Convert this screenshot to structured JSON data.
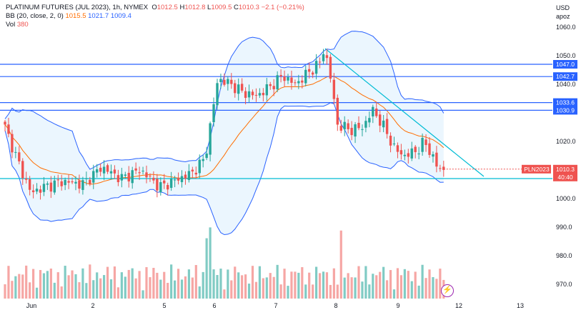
{
  "legend": {
    "symbol": "PLATINUM FUTURES (JUL 2023)",
    "interval": "1h",
    "exchange": "NYMEX",
    "open_label": "O",
    "open": "1012.5",
    "high_label": "H",
    "high": "1012.8",
    "low_label": "L",
    "low": "1009.5",
    "close_label": "C",
    "close": "1010.3",
    "change": "−2.1 (−0.21%)",
    "bb_label": "BB (20, close, 2, 0)",
    "bb_basis": "1015.5",
    "bb_upper": "1021.7",
    "bb_lower": "1009.4",
    "vol_label": "Vol",
    "vol_value": "380"
  },
  "price_axis": {
    "currency": "USD",
    "scale": "apoz",
    "ticks": [
      "1060.0",
      "1050.0",
      "1040.0",
      "1020.0",
      "1000.0",
      "990.0",
      "980.0",
      "970.0"
    ]
  },
  "time_axis": {
    "labels": [
      "Jun",
      "2",
      "5",
      "6",
      "7",
      "8",
      "9",
      "12",
      "13"
    ]
  },
  "horizontal_lines": [
    {
      "label": "1047.0",
      "color": "#2962ff"
    },
    {
      "label": "1042.7",
      "color": "#2962ff"
    },
    {
      "label": "1033.6",
      "color": "#2962ff"
    },
    {
      "label": "1030.9",
      "color": "#2962ff"
    },
    {
      "label": "1007.0",
      "color": "#00bcd4",
      "hidden_label": true
    }
  ],
  "current_price": {
    "symbol_tag": "PLN2023",
    "price": "1010.3",
    "countdown": "40:40",
    "color": "#ef5350"
  },
  "colors": {
    "up": "#26a69a",
    "down": "#ef5350",
    "bb_band": "#2962ff",
    "bb_basis": "#ff6d00",
    "bb_fill": "#e3f2fd",
    "trendline": "#00bcd4",
    "hline": "#2962ff"
  },
  "flash_icon": "lightning-icon"
}
